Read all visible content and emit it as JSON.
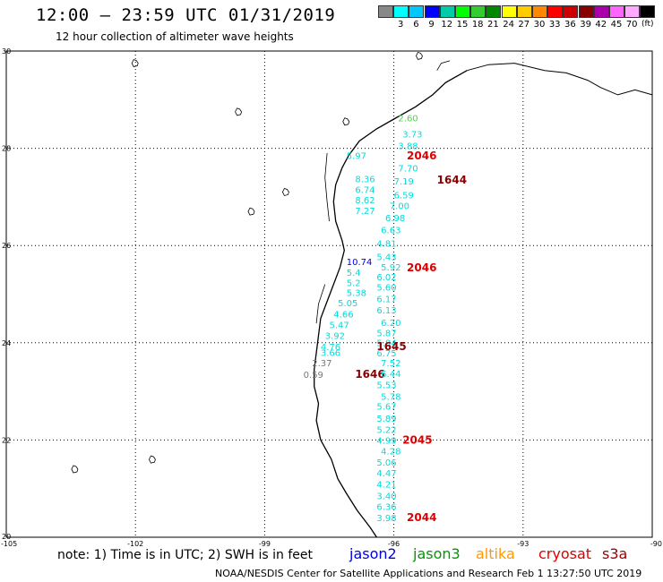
{
  "header": {
    "title": "12:00 – 23:59 UTC 01/31/2019",
    "subtitle": "12 hour collection of altimeter wave heights"
  },
  "legend": {
    "unit": "(ft)",
    "items": [
      {
        "label": "",
        "color": "#888888"
      },
      {
        "label": "3",
        "color": "#00ffff"
      },
      {
        "label": "6",
        "color": "#00c8ff"
      },
      {
        "label": "9",
        "color": "#0000ff"
      },
      {
        "label": "12",
        "color": "#00ccaa"
      },
      {
        "label": "15",
        "color": "#00ff00"
      },
      {
        "label": "18",
        "color": "#33cc33"
      },
      {
        "label": "21",
        "color": "#008800"
      },
      {
        "label": "24",
        "color": "#ffff00"
      },
      {
        "label": "27",
        "color": "#ffcc00"
      },
      {
        "label": "30",
        "color": "#ff8800"
      },
      {
        "label": "33",
        "color": "#ff0000"
      },
      {
        "label": "36",
        "color": "#cc0000"
      },
      {
        "label": "39",
        "color": "#880000"
      },
      {
        "label": "42",
        "color": "#aa00aa"
      },
      {
        "label": "45",
        "color": "#ff66ff"
      },
      {
        "label": "70",
        "color": "#ffaaff"
      },
      {
        "label": "",
        "color": "#000000"
      }
    ]
  },
  "map": {
    "lon_ticks": [
      {
        "lon": -105,
        "label": "-105"
      },
      {
        "lon": -102,
        "label": "-102"
      },
      {
        "lon": -99,
        "label": "-99"
      },
      {
        "lon": -96,
        "label": "-96"
      },
      {
        "lon": -93,
        "label": "-93"
      },
      {
        "lon": -90,
        "label": "-90"
      }
    ],
    "lat_ticks": [
      {
        "lat": 30,
        "label": "30"
      },
      {
        "lat": 28,
        "label": "28"
      },
      {
        "lat": 26,
        "label": "26"
      },
      {
        "lat": 24,
        "label": "24"
      },
      {
        "lat": 22,
        "label": "22"
      },
      {
        "lat": 20,
        "label": "20"
      }
    ],
    "wave_labels": [
      {
        "text": "2.60",
        "lon": -95.9,
        "lat": 28.55,
        "color": "#44dd44"
      },
      {
        "text": "3.73",
        "lon": -95.8,
        "lat": 28.22,
        "color": "#00dddd"
      },
      {
        "text": "3.88",
        "lon": -95.9,
        "lat": 27.98,
        "color": "#00dddd"
      },
      {
        "text": "2046",
        "lon": -95.7,
        "lat": 27.77,
        "color": "#dd0000"
      },
      {
        "text": "5.97",
        "lon": -97.1,
        "lat": 27.78,
        "color": "#00dddd"
      },
      {
        "text": "7.70",
        "lon": -95.9,
        "lat": 27.52,
        "color": "#00dddd"
      },
      {
        "text": "8.36",
        "lon": -96.9,
        "lat": 27.3,
        "color": "#00dddd"
      },
      {
        "text": "7.19",
        "lon": -96.0,
        "lat": 27.26,
        "color": "#00dddd"
      },
      {
        "text": "1644",
        "lon": -95.0,
        "lat": 27.27,
        "color": "#880000"
      },
      {
        "text": "6.74",
        "lon": -96.9,
        "lat": 27.08,
        "color": "#00dddd"
      },
      {
        "text": "6.59",
        "lon": -96.0,
        "lat": 26.97,
        "color": "#00dddd"
      },
      {
        "text": "8.62",
        "lon": -96.9,
        "lat": 26.87,
        "color": "#00dddd"
      },
      {
        "text": "7.00",
        "lon": -96.1,
        "lat": 26.75,
        "color": "#00dddd"
      },
      {
        "text": "7.27",
        "lon": -96.9,
        "lat": 26.65,
        "color": "#00dddd"
      },
      {
        "text": "6.98",
        "lon": -96.2,
        "lat": 26.5,
        "color": "#00dddd"
      },
      {
        "text": "6.63",
        "lon": -96.3,
        "lat": 26.25,
        "color": "#00dddd"
      },
      {
        "text": "4.81",
        "lon": -96.4,
        "lat": 25.98,
        "color": "#00dddd"
      },
      {
        "text": "5.43",
        "lon": -96.4,
        "lat": 25.7,
        "color": "#00dddd"
      },
      {
        "text": "10.74",
        "lon": -97.1,
        "lat": 25.6,
        "color": "#0000ee"
      },
      {
        "text": "5.92",
        "lon": -96.3,
        "lat": 25.49,
        "color": "#00dddd"
      },
      {
        "text": "2046",
        "lon": -95.7,
        "lat": 25.47,
        "color": "#dd0000"
      },
      {
        "text": "5.4",
        "lon": -97.1,
        "lat": 25.38,
        "color": "#00dddd"
      },
      {
        "text": "6.02",
        "lon": -96.4,
        "lat": 25.29,
        "color": "#00dddd"
      },
      {
        "text": "5.2",
        "lon": -97.1,
        "lat": 25.17,
        "color": "#00dddd"
      },
      {
        "text": "5.60",
        "lon": -96.4,
        "lat": 25.07,
        "color": "#00dddd"
      },
      {
        "text": "5.38",
        "lon": -97.1,
        "lat": 24.96,
        "color": "#00dddd"
      },
      {
        "text": "6.17",
        "lon": -96.4,
        "lat": 24.83,
        "color": "#00dddd"
      },
      {
        "text": "5.05",
        "lon": -97.3,
        "lat": 24.75,
        "color": "#00dddd"
      },
      {
        "text": "6.13",
        "lon": -96.4,
        "lat": 24.6,
        "color": "#00dddd"
      },
      {
        "text": "4.66",
        "lon": -97.4,
        "lat": 24.52,
        "color": "#00dddd"
      },
      {
        "text": "6.20",
        "lon": -96.3,
        "lat": 24.35,
        "color": "#00dddd"
      },
      {
        "text": "5.47",
        "lon": -97.5,
        "lat": 24.3,
        "color": "#00dddd"
      },
      {
        "text": "5.87",
        "lon": -96.4,
        "lat": 24.13,
        "color": "#00dddd"
      },
      {
        "text": "3.92",
        "lon": -97.6,
        "lat": 24.08,
        "color": "#00dddd"
      },
      {
        "text": "5.84",
        "lon": -96.4,
        "lat": 23.93,
        "color": "#00dddd"
      },
      {
        "text": "4.76",
        "lon": -97.7,
        "lat": 23.85,
        "color": "#00dddd"
      },
      {
        "text": "1645",
        "lon": -96.4,
        "lat": 23.85,
        "color": "#880000"
      },
      {
        "text": "3.66",
        "lon": -97.7,
        "lat": 23.73,
        "color": "#00dddd"
      },
      {
        "text": "6.75",
        "lon": -96.4,
        "lat": 23.72,
        "color": "#00dddd"
      },
      {
        "text": "2.37",
        "lon": -97.9,
        "lat": 23.52,
        "color": "#777777"
      },
      {
        "text": "7.52",
        "lon": -96.3,
        "lat": 23.52,
        "color": "#00dddd"
      },
      {
        "text": "0.59",
        "lon": -98.1,
        "lat": 23.28,
        "color": "#777777"
      },
      {
        "text": "1646",
        "lon": -96.9,
        "lat": 23.28,
        "color": "#880000"
      },
      {
        "text": "6.44",
        "lon": -96.3,
        "lat": 23.3,
        "color": "#00dddd"
      },
      {
        "text": "5.53",
        "lon": -96.4,
        "lat": 23.07,
        "color": "#00dddd"
      },
      {
        "text": "5.78",
        "lon": -96.3,
        "lat": 22.83,
        "color": "#00dddd"
      },
      {
        "text": "5.67",
        "lon": -96.4,
        "lat": 22.62,
        "color": "#00dddd"
      },
      {
        "text": "5.89",
        "lon": -96.4,
        "lat": 22.38,
        "color": "#00dddd"
      },
      {
        "text": "5.22",
        "lon": -96.4,
        "lat": 22.15,
        "color": "#00dddd"
      },
      {
        "text": "4.99",
        "lon": -96.4,
        "lat": 21.92,
        "color": "#00dddd"
      },
      {
        "text": "2045",
        "lon": -95.8,
        "lat": 21.92,
        "color": "#dd0000"
      },
      {
        "text": "4.28",
        "lon": -96.3,
        "lat": 21.7,
        "color": "#00dddd"
      },
      {
        "text": "5.06",
        "lon": -96.4,
        "lat": 21.47,
        "color": "#00dddd"
      },
      {
        "text": "4.47",
        "lon": -96.4,
        "lat": 21.25,
        "color": "#00dddd"
      },
      {
        "text": "4.21",
        "lon": -96.4,
        "lat": 21.02,
        "color": "#00dddd"
      },
      {
        "text": "3.40",
        "lon": -96.4,
        "lat": 20.78,
        "color": "#00dddd"
      },
      {
        "text": "6.36",
        "lon": -96.4,
        "lat": 20.56,
        "color": "#00dddd"
      },
      {
        "text": "3.98",
        "lon": -96.4,
        "lat": 20.33,
        "color": "#00dddd"
      },
      {
        "text": "2044",
        "lon": -95.7,
        "lat": 20.33,
        "color": "#dd0000"
      }
    ]
  },
  "footer": {
    "note": "note:  1) Time is in UTC;  2) SWH is in feet",
    "satellites": [
      {
        "name": "jason2",
        "color": "#0000dd"
      },
      {
        "name": "jason3",
        "color": "#009900"
      },
      {
        "name": "altika",
        "color": "#ff9900"
      },
      {
        "name": "cryosat",
        "color": "#dd0000"
      },
      {
        "name": "s3a",
        "color": "#990000"
      }
    ],
    "credit": "NOAA/NESDIS Center for Satellite Applications and Research    Feb  1 13:27:50 UTC 2019"
  }
}
